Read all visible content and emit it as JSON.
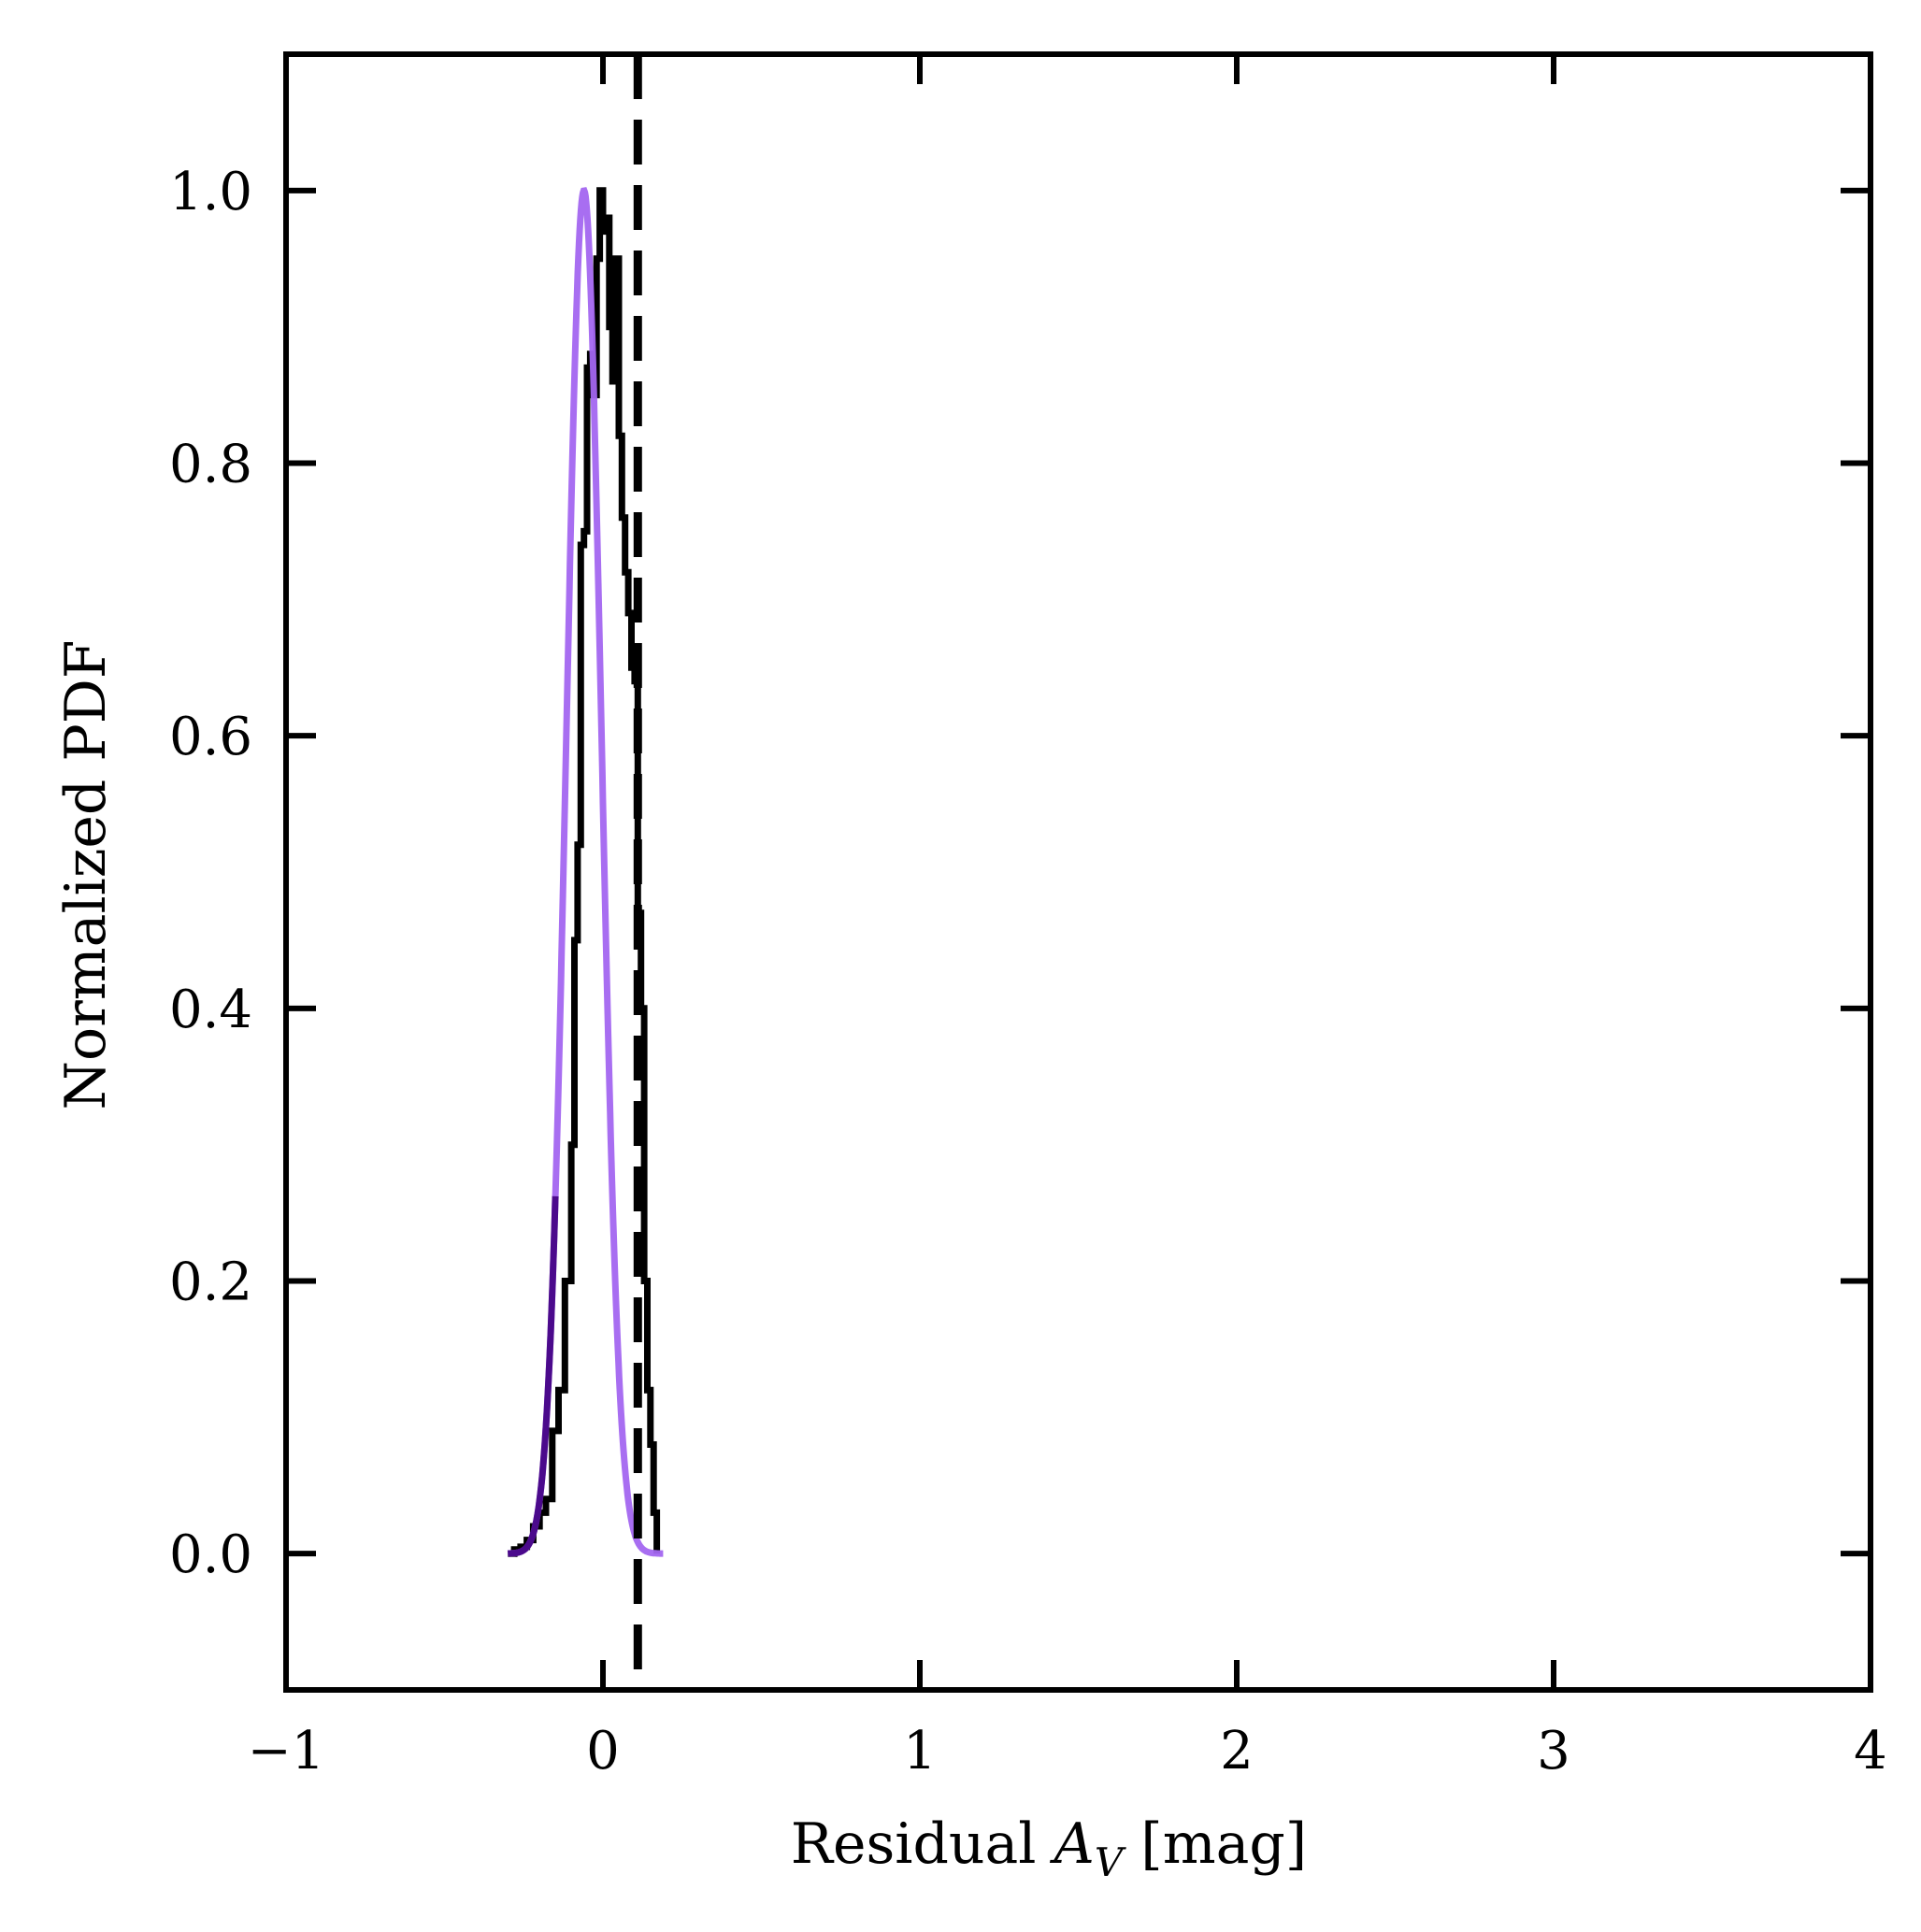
{
  "chart_data": {
    "type": "line",
    "title": "",
    "xlabel": "Residual A_V [mag]",
    "xlabel_parts": {
      "prefix": "Residual ",
      "symbol": "A",
      "subscript": "V",
      "suffix": " [mag]"
    },
    "ylabel": "Normalized PDF",
    "xlim": [
      -1,
      4
    ],
    "ylim": [
      -0.1,
      1.1
    ],
    "x_ticks": [
      -1,
      0,
      1,
      2,
      3,
      4
    ],
    "x_tick_labels": [
      "−1",
      "0",
      "1",
      "2",
      "3",
      "4"
    ],
    "y_ticks": [
      0.0,
      0.2,
      0.4,
      0.6,
      0.8,
      1.0
    ],
    "y_tick_labels": [
      "0.0",
      "0.2",
      "0.4",
      "0.6",
      "0.8",
      "1.0"
    ],
    "grid": false,
    "legend": "none",
    "series": [
      {
        "style": "step-histogram",
        "color": "#000000",
        "x": [
          -0.3,
          -0.28,
          -0.26,
          -0.24,
          -0.22,
          -0.2,
          -0.18,
          -0.16,
          -0.14,
          -0.12,
          -0.1,
          -0.09,
          -0.08,
          -0.07,
          -0.06,
          -0.05,
          -0.04,
          -0.03,
          -0.02,
          -0.01,
          0.0,
          0.01,
          0.02,
          0.03,
          0.04,
          0.05,
          0.06,
          0.07,
          0.08,
          0.09,
          0.1,
          0.11,
          0.12,
          0.13,
          0.14,
          0.15,
          0.16,
          0.17
        ],
        "y": [
          0.0,
          0.003,
          0.005,
          0.01,
          0.02,
          0.03,
          0.04,
          0.09,
          0.12,
          0.2,
          0.3,
          0.45,
          0.52,
          0.74,
          0.75,
          0.87,
          0.88,
          0.85,
          0.95,
          1.0,
          0.97,
          0.98,
          0.9,
          0.86,
          0.95,
          0.82,
          0.76,
          0.72,
          0.69,
          0.65,
          0.64,
          0.47,
          0.4,
          0.2,
          0.12,
          0.08,
          0.03,
          0.0
        ]
      },
      {
        "style": "gaussian-curve",
        "color": "#a366f0",
        "mean": -0.06,
        "sigma": 0.055,
        "x_range": [
          -0.3,
          0.19
        ]
      },
      {
        "style": "dashed-vertical-line",
        "color": "#000000",
        "x": 0.11
      }
    ],
    "overlap_color": "#4b0a8c"
  }
}
